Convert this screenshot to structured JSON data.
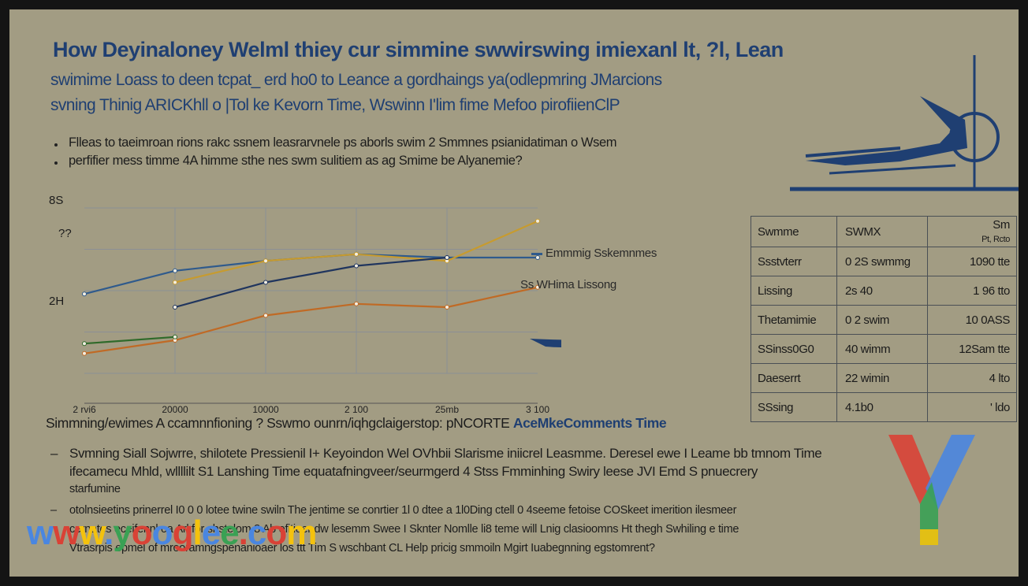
{
  "slide": {
    "title": "How Deyinaloney Welml thiey  cur simmine swwirswing imiexanl  lt, ?l, Lean",
    "subtitle_lines": [
      "swimime Loass to deen tcpat_ erd  ho0 to Leance  a gordhaings ya(odlepmring JMarcions",
      "svning Thinig ARICKhll  o |Tol ke Kevorn Time, Wswinn I'lim fime Mefoo pirofiienClP"
    ],
    "bullets": [
      "Flleas to taeimroan rions rakc ssnem leasrarvnele ps aborls swim 2 Smmnes psianidatiman o Wsem",
      "perfifier mess timme 4A himme sthe nes swm sulitiem as ag Smime be Alyanemie?"
    ],
    "caption": "Simmning/ewimes A ccamnnfioning ? Sswmo ounrn/iqhgclaigerstop: pNCORTE",
    "caption_emph": "AceMkeComments  Time",
    "lower_bullets": [
      {
        "dash": "–",
        "line1": "Svmning Siall Sojwrre, shilotete Pressienil  I+ Keyoindon Wel OVhbii Slarisme iniicrel Leasmme. Deresel ewe I  Leame  bb tmnom Time",
        "line2": "ifecamecu  Mhld,  wllllilt S1 Lanshing Time equatafningveer/seurmgerd   4 Stss  Fmminhing Swiry leese JVI  Emd S pnuecrery",
        "line3": "starfumine"
      },
      {
        "dash": "–",
        "line1": "otolnsieetins prinerrel I0 0 0 lotee twine swiln The jentime se conrtier 1l 0 dtee a 1l0Ding ctell 0 4seeme  fetoise COSkeet imerition ilesmeer",
        "line2": "cernates eceifennl oa Arl for shstelom 8 Ab efitieer dw lesemm Swee I  Sknter Nomlle li8 teme will Lnig clasioomns Ht thegh Swhiling e time",
        "line3": "Vtrasrpis epmel of mrooramngspenanioaer los ttt Tim S wschbant CL Help pricig smmoiln Mgirt Iuabegnning egstomrent?"
      }
    ],
    "watermark": "www.yooglee.com"
  },
  "chart_data": {
    "type": "line",
    "ylabel_top": "8S",
    "ylabel_mid1": "??",
    "ylabel_mid2": "2H",
    "categories": [
      "2 rvi6",
      "20000",
      "10000",
      "2 100",
      "25mb",
      "3 100"
    ],
    "series": [
      {
        "name": "Emmmig Sskemnmes",
        "color": "#2f5a8c",
        "values": [
          48,
          62,
          68,
          72,
          70,
          70
        ]
      },
      {
        "name": "",
        "color": "#c79b2f",
        "values": [
          null,
          55,
          68,
          72,
          68,
          92
        ]
      },
      {
        "name": "",
        "color": "#20355e",
        "values": [
          null,
          40,
          55,
          65,
          70,
          null
        ]
      },
      {
        "name": "Ss WHima Lissong",
        "color": "#c06a25",
        "values": [
          12,
          20,
          35,
          42,
          40,
          52
        ]
      },
      {
        "name": "",
        "color": "#2f6a2a",
        "values": [
          18,
          22,
          null,
          null,
          null,
          null
        ]
      }
    ],
    "legend": [
      {
        "label": "Emmmig Sskemnmes",
        "color": "#2f5a8c"
      },
      {
        "label": "Ss WHima Lissong",
        "color": "#c06a25"
      }
    ]
  },
  "table": {
    "headers": [
      "Swmme",
      "SWMX",
      "Sm"
    ],
    "header_note": "Pt, Rcto",
    "rows": [
      [
        "Ssstvterr",
        "0 2S swmmg",
        "1090 tte"
      ],
      [
        "Lissing",
        "2s 40",
        "1 96 tto"
      ],
      [
        "Thetamimie",
        "0 2 swim",
        "10 0ASS"
      ],
      [
        "SSinss0G0",
        "40 wimm",
        "12Sam tte"
      ],
      [
        "Daeserrt",
        "22 wimin",
        "4 lto"
      ],
      [
        "SSsing",
        "4.1b0",
        "' ldo"
      ]
    ]
  },
  "colors": {
    "background": "#a29c83",
    "title": "#1f3f72",
    "accent_blue": "#1f3f72"
  }
}
